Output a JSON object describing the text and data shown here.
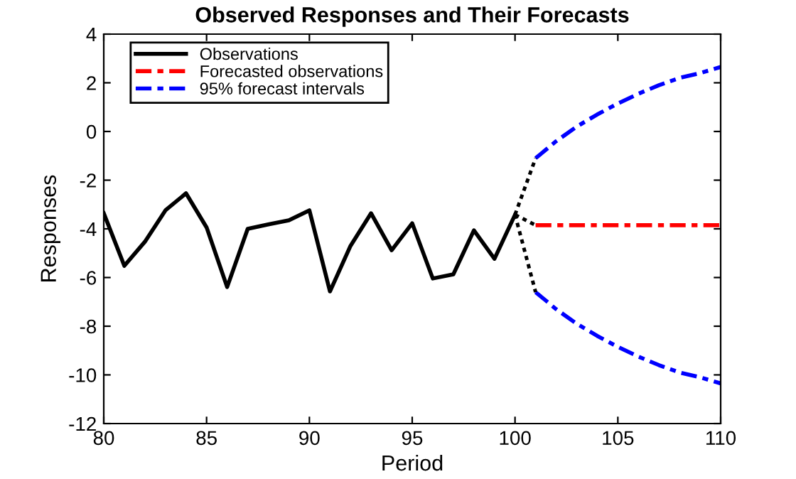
{
  "chart_data": {
    "type": "line",
    "title": "Observed Responses and Their Forecasts",
    "xlabel": "Period",
    "ylabel": "Responses",
    "xlim": [
      80,
      110
    ],
    "xticks": [
      80,
      85,
      90,
      95,
      100,
      105,
      110
    ],
    "ylim": [
      -12,
      4
    ],
    "yticks": [
      -12,
      -10,
      -8,
      -6,
      -4,
      -2,
      0,
      2,
      4
    ],
    "grid": false,
    "legend": "top left",
    "marker": "none",
    "series": [
      {
        "name": "Observations",
        "color": "#000000",
        "line_style": "solid",
        "x": [
          80,
          81,
          82,
          83,
          84,
          85,
          86,
          87,
          88,
          89,
          90,
          91,
          92,
          93,
          94,
          95,
          96,
          97,
          98,
          99,
          100
        ],
        "values": [
          -3.36,
          -5.52,
          -4.53,
          -3.24,
          -2.54,
          -3.94,
          -6.39,
          -4.0,
          -3.82,
          -3.65,
          -3.24,
          -6.57,
          -4.7,
          -3.36,
          -4.88,
          -3.77,
          -6.04,
          -5.87,
          -4.06,
          -5.23,
          -3.42
        ]
      },
      {
        "name": "Forecasted observations",
        "color": "#ff0000",
        "line_style": "dashed",
        "x": [
          101,
          102,
          103,
          104,
          105,
          106,
          107,
          108,
          109,
          110
        ],
        "values": [
          -3.85,
          -3.85,
          -3.85,
          -3.85,
          -3.85,
          -3.85,
          -3.85,
          -3.85,
          -3.85,
          -3.85
        ]
      },
      {
        "name": "95% forecast intervals",
        "color": "#0000ff",
        "line_style": "dashed",
        "x": [
          101,
          102,
          103,
          104,
          105,
          106,
          107,
          108,
          109,
          110
        ],
        "values": [
          -1.1,
          -0.4,
          0.2,
          0.7,
          1.15,
          1.55,
          1.9,
          2.2,
          2.4,
          2.65
        ]
      },
      {
        "color": "#0000ff",
        "line_style": "dashed",
        "x": [
          101,
          102,
          103,
          104,
          105,
          106,
          107,
          108,
          109,
          110
        ],
        "values": [
          -6.6,
          -7.3,
          -7.9,
          -8.4,
          -8.85,
          -9.25,
          -9.6,
          -9.9,
          -10.1,
          -10.35
        ]
      },
      {
        "color": "#000000",
        "line_style": "dotted",
        "x": [
          100,
          101
        ],
        "values": [
          -3.42,
          -3.85
        ]
      },
      {
        "color": "#000000",
        "line_style": "dotted",
        "x": [
          100,
          101
        ],
        "values": [
          -3.42,
          -1.1
        ]
      },
      {
        "color": "#000000",
        "line_style": "dotted",
        "x": [
          100,
          101
        ],
        "values": [
          -3.42,
          -6.6
        ]
      }
    ]
  }
}
